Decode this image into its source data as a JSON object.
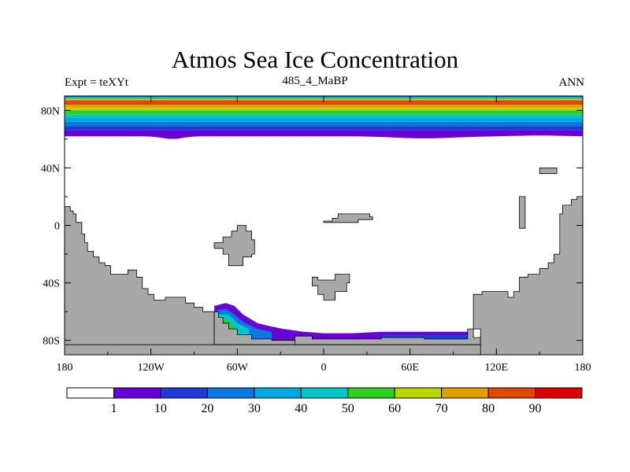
{
  "chart_data": {
    "type": "heatmap",
    "title": "Atmos Sea Ice Concentration",
    "subtitle_left": "Expt = teXYt",
    "subtitle_center": "485_4_MaBP",
    "subtitle_right": "ANN",
    "x_ticks": [
      "180",
      "120W",
      "60W",
      "0",
      "60E",
      "120E",
      "180"
    ],
    "x_tick_values": [
      -180,
      -120,
      -60,
      0,
      60,
      120,
      180
    ],
    "y_ticks": [
      "80N",
      "40N",
      "0",
      "40S",
      "80S"
    ],
    "y_tick_values": [
      80,
      40,
      0,
      -40,
      -80
    ],
    "xlim": [
      -180,
      180
    ],
    "ylim": [
      -90,
      90
    ],
    "land_color": "#a8a8a8",
    "colorbar": {
      "levels": [
        "1",
        "10",
        "20",
        "30",
        "40",
        "50",
        "60",
        "70",
        "80",
        "90"
      ],
      "colors": [
        "#ffffff",
        "#6a00d8",
        "#1e3cd8",
        "#0a78e0",
        "#00a8e0",
        "#00c8c8",
        "#30d020",
        "#b8d800",
        "#e0a000",
        "#e04800",
        "#e00000"
      ]
    },
    "ice_bands_north": [
      {
        "lat_min": 62,
        "lat_max": 66,
        "value": 5
      },
      {
        "lat_min": 66,
        "lat_max": 69,
        "value": 15
      },
      {
        "lat_min": 69,
        "lat_max": 72,
        "value": 25
      },
      {
        "lat_min": 72,
        "lat_max": 75,
        "value": 35
      },
      {
        "lat_min": 75,
        "lat_max": 77,
        "value": 45
      },
      {
        "lat_min": 77,
        "lat_max": 80,
        "value": 55
      },
      {
        "lat_min": 80,
        "lat_max": 82,
        "value": 65
      },
      {
        "lat_min": 82,
        "lat_max": 84,
        "value": 75
      },
      {
        "lat_min": 84,
        "lat_max": 87,
        "value": 85
      },
      {
        "lat_min": 87,
        "lat_max": 88,
        "value": 65
      },
      {
        "lat_min": 88,
        "lat_max": 89,
        "value": 45
      },
      {
        "lat_min": 89,
        "lat_max": 90,
        "value": 25
      }
    ],
    "land": [
      {
        "name": "west-continent",
        "points": [
          [
            -180,
            13
          ],
          [
            -176,
            13
          ],
          [
            -176,
            10
          ],
          [
            -174,
            10
          ],
          [
            -174,
            8
          ],
          [
            -172,
            8
          ],
          [
            -172,
            2
          ],
          [
            -168,
            2
          ],
          [
            -168,
            -6
          ],
          [
            -166,
            -6
          ],
          [
            -166,
            -12
          ],
          [
            -164,
            -12
          ],
          [
            -164,
            -18
          ],
          [
            -160,
            -18
          ],
          [
            -160,
            -22
          ],
          [
            -156,
            -22
          ],
          [
            -156,
            -26
          ],
          [
            -152,
            -26
          ],
          [
            -152,
            -28
          ],
          [
            -148,
            -28
          ],
          [
            -148,
            -34
          ],
          [
            -136,
            -34
          ],
          [
            -136,
            -31
          ],
          [
            -130,
            -31
          ],
          [
            -130,
            -36
          ],
          [
            -126,
            -36
          ],
          [
            -126,
            -44
          ],
          [
            -122,
            -44
          ],
          [
            -122,
            -48
          ],
          [
            -118,
            -48
          ],
          [
            -118,
            -52
          ],
          [
            -110,
            -52
          ],
          [
            -110,
            -50
          ],
          [
            -96,
            -50
          ],
          [
            -96,
            -54
          ],
          [
            -90,
            -54
          ],
          [
            -90,
            -57
          ],
          [
            -84,
            -57
          ],
          [
            -84,
            -60
          ],
          [
            -76,
            -60
          ],
          [
            -76,
            -90
          ],
          [
            -180,
            -90
          ]
        ]
      },
      {
        "name": "antarctic-west",
        "points": [
          [
            -76,
            -60
          ],
          [
            -73,
            -60
          ],
          [
            -73,
            -64
          ],
          [
            -70,
            -64
          ],
          [
            -70,
            -68
          ],
          [
            -66,
            -68
          ],
          [
            -66,
            -72
          ],
          [
            -60,
            -72
          ],
          [
            -60,
            -76
          ],
          [
            -50,
            -76
          ],
          [
            -50,
            -79
          ],
          [
            -36,
            -79
          ],
          [
            -36,
            -80
          ],
          [
            -20,
            -80
          ],
          [
            -20,
            -83
          ],
          [
            -76,
            -83
          ]
        ]
      },
      {
        "name": "antarctic-center",
        "points": [
          [
            -20,
            -77
          ],
          [
            -8,
            -77
          ],
          [
            -8,
            -79
          ],
          [
            40,
            -79
          ],
          [
            40,
            -78
          ],
          [
            70,
            -78
          ],
          [
            70,
            -79
          ],
          [
            100,
            -79
          ],
          [
            100,
            -72
          ],
          [
            104,
            -72
          ],
          [
            104,
            -78
          ],
          [
            109,
            -78
          ],
          [
            109,
            -83
          ],
          [
            -20,
            -83
          ]
        ]
      },
      {
        "name": "antarctic-base",
        "points": [
          [
            -180,
            -83
          ],
          [
            180,
            -83
          ],
          [
            180,
            -90
          ],
          [
            -180,
            -90
          ]
        ]
      },
      {
        "name": "east-continent",
        "points": [
          [
            180,
            20
          ],
          [
            176,
            20
          ],
          [
            176,
            18
          ],
          [
            172,
            18
          ],
          [
            172,
            14
          ],
          [
            166,
            14
          ],
          [
            166,
            8
          ],
          [
            164,
            8
          ],
          [
            164,
            -20
          ],
          [
            160,
            -20
          ],
          [
            160,
            -26
          ],
          [
            156,
            -26
          ],
          [
            156,
            -30
          ],
          [
            150,
            -30
          ],
          [
            150,
            -34
          ],
          [
            142,
            -34
          ],
          [
            142,
            -36
          ],
          [
            136,
            -36
          ],
          [
            136,
            -46
          ],
          [
            132,
            -46
          ],
          [
            132,
            -50
          ],
          [
            128,
            -50
          ],
          [
            128,
            -46
          ],
          [
            110,
            -46
          ],
          [
            110,
            -48
          ],
          [
            104,
            -48
          ],
          [
            104,
            -72
          ],
          [
            109,
            -72
          ],
          [
            109,
            -90
          ],
          [
            180,
            -90
          ]
        ]
      },
      {
        "name": "africa-west",
        "points": [
          [
            -70,
            -8
          ],
          [
            -64,
            -8
          ],
          [
            -64,
            -4
          ],
          [
            -60,
            -4
          ],
          [
            -60,
            0
          ],
          [
            -54,
            0
          ],
          [
            -54,
            -4
          ],
          [
            -50,
            -4
          ],
          [
            -50,
            -10
          ],
          [
            -48,
            -10
          ],
          [
            -48,
            -20
          ],
          [
            -50,
            -20
          ],
          [
            -50,
            -22
          ],
          [
            -56,
            -22
          ],
          [
            -56,
            -28
          ],
          [
            -66,
            -28
          ],
          [
            -66,
            -20
          ],
          [
            -70,
            -20
          ],
          [
            -70,
            -16
          ],
          [
            -76,
            -16
          ],
          [
            -76,
            -12
          ],
          [
            -70,
            -12
          ]
        ]
      },
      {
        "name": "south-island",
        "points": [
          [
            -8,
            -36
          ],
          [
            -4,
            -36
          ],
          [
            -4,
            -38
          ],
          [
            8,
            -38
          ],
          [
            8,
            -34
          ],
          [
            18,
            -34
          ],
          [
            18,
            -40
          ],
          [
            16,
            -40
          ],
          [
            16,
            -46
          ],
          [
            8,
            -46
          ],
          [
            8,
            -52
          ],
          [
            0,
            -52
          ],
          [
            0,
            -48
          ],
          [
            -4,
            -48
          ],
          [
            -4,
            -42
          ],
          [
            -8,
            -42
          ]
        ]
      },
      {
        "name": "equator-island",
        "points": [
          [
            0,
            3
          ],
          [
            6,
            3
          ],
          [
            6,
            5
          ],
          [
            10,
            5
          ],
          [
            10,
            8
          ],
          [
            32,
            8
          ],
          [
            32,
            6
          ],
          [
            34,
            6
          ],
          [
            34,
            4
          ],
          [
            24,
            4
          ],
          [
            24,
            2
          ],
          [
            0,
            2
          ]
        ]
      },
      {
        "name": "ne-island",
        "points": [
          [
            150,
            40
          ],
          [
            162,
            40
          ],
          [
            162,
            36
          ],
          [
            150,
            36
          ]
        ]
      },
      {
        "name": "e-island",
        "points": [
          [
            136,
            20
          ],
          [
            140,
            20
          ],
          [
            140,
            -2
          ],
          [
            136,
            -2
          ]
        ]
      }
    ],
    "ice_south": [
      {
        "value": 5,
        "points": [
          [
            -76,
            -56
          ],
          [
            -68,
            -54
          ],
          [
            -62,
            -56
          ],
          [
            -56,
            -62
          ],
          [
            -46,
            -68
          ],
          [
            -38,
            -70
          ],
          [
            -28,
            -72
          ],
          [
            -14,
            -74
          ],
          [
            0,
            -75
          ],
          [
            20,
            -75
          ],
          [
            40,
            -74
          ],
          [
            60,
            -74
          ],
          [
            80,
            -74
          ],
          [
            100,
            -74
          ],
          [
            100,
            -79
          ],
          [
            70,
            -79
          ],
          [
            40,
            -79
          ],
          [
            -8,
            -79
          ],
          [
            -20,
            -80
          ],
          [
            -76,
            -80
          ]
        ]
      },
      {
        "value": 25,
        "points": [
          [
            -74,
            -59
          ],
          [
            -68,
            -58
          ],
          [
            -62,
            -62
          ],
          [
            -56,
            -67
          ],
          [
            -46,
            -72
          ],
          [
            -36,
            -74
          ],
          [
            -36,
            -80
          ],
          [
            -74,
            -80
          ]
        ]
      },
      {
        "value": 45,
        "points": [
          [
            -74,
            -62
          ],
          [
            -66,
            -62
          ],
          [
            -60,
            -68
          ],
          [
            -52,
            -72
          ],
          [
            -52,
            -80
          ],
          [
            -74,
            -80
          ]
        ]
      },
      {
        "value": 55,
        "points": [
          [
            -74,
            -66
          ],
          [
            -66,
            -66
          ],
          [
            -62,
            -72
          ],
          [
            -62,
            -80
          ],
          [
            -74,
            -80
          ]
        ]
      },
      {
        "value": 15,
        "points": [
          [
            40,
            -76
          ],
          [
            100,
            -76
          ],
          [
            100,
            -79
          ],
          [
            40,
            -79
          ]
        ]
      }
    ]
  }
}
